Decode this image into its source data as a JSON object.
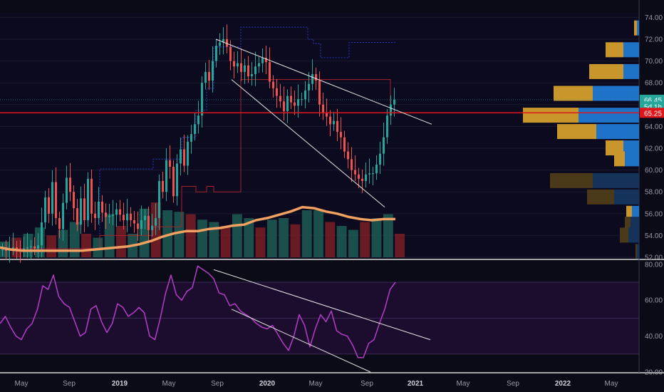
{
  "chart_data": [
    {
      "type": "candlestick",
      "title": "",
      "ylim": [
        52,
        74
      ],
      "y_ticks": [
        "52.00",
        "54.00",
        "56.00",
        "58.00",
        "60.00",
        "62.00",
        "64.00",
        "66.00",
        "68.00",
        "70.00",
        "72.00",
        "74.00"
      ],
      "x_ticks": [
        "May",
        "Sep",
        "2019",
        "May",
        "Sep",
        "2020",
        "May",
        "Sep",
        "2021",
        "May",
        "Sep",
        "2022",
        "May"
      ],
      "price_labels": [
        {
          "text": "66.45",
          "value": 66.45,
          "color": "#26a69a"
        },
        {
          "text": "5d 1h",
          "value": 65.9,
          "color": "#26a69a"
        },
        {
          "text": "65.25",
          "value": 65.25,
          "color": "#e0151b"
        }
      ],
      "horizontal_level": 65.25,
      "candles_close": [
        52.7,
        52.6,
        52.8,
        52.9,
        52.7,
        52.6,
        52.8,
        52.9,
        53.0,
        52.8,
        53.1,
        55.2,
        57.5,
        56.0,
        58.9,
        55.6,
        54.6,
        57.0,
        59.3,
        58.0,
        56.5,
        55.0,
        57.4,
        55.4,
        59.2,
        56.0,
        55.6,
        57.1,
        56.1,
        55.7,
        55.8,
        55.9,
        56.4,
        55.9,
        55.4,
        56.0,
        55.4,
        55.1,
        54.6,
        55.4,
        55.8,
        54.5,
        54.9,
        55.6,
        59.0,
        58.0,
        60.9,
        60.3,
        57.6,
        60.6,
        61.9,
        60.4,
        62.6,
        63.3,
        64.2,
        65.0,
        68.0,
        69.0,
        68.2,
        70.0,
        71.4,
        71.7,
        72.0,
        71.3,
        70.0,
        69.5,
        69.8,
        69.0,
        69.6,
        68.6,
        68.8,
        69.5,
        69.8,
        70.3,
        69.9,
        68.1,
        67.5,
        66.8,
        66.3,
        65.4,
        66.8,
        66.2,
        65.9,
        66.5,
        66.5,
        67.3,
        67.9,
        68.8,
        68.2,
        66.0,
        65.2,
        64.9,
        64.2,
        64.5,
        63.5,
        63.0,
        61.7,
        61.0,
        60.0,
        59.6,
        59.2,
        59.0,
        59.6,
        59.7,
        59.7,
        60.5,
        61.5,
        63.0,
        65.0,
        66.0,
        66.45
      ],
      "ma_values": [
        52.9,
        52.7,
        52.6,
        52.6,
        52.6,
        52.6,
        52.6,
        52.6,
        52.7,
        52.8,
        52.9,
        53.0,
        53.2,
        53.5,
        53.9,
        54.2,
        54.4,
        54.4,
        54.6,
        54.7,
        54.9,
        55.0,
        55.4,
        55.6,
        55.9,
        56.2,
        56.6,
        56.5,
        56.2,
        56.0,
        55.7,
        55.5,
        55.4,
        55.5,
        55.5
      ],
      "volume_values": [
        20,
        25,
        30,
        38,
        28,
        35,
        45,
        30,
        25,
        55,
        40,
        30,
        62,
        70,
        60,
        58,
        55,
        48,
        45,
        40,
        55,
        50,
        38,
        48,
        50,
        42,
        60,
        60,
        45,
        40,
        35,
        45,
        50,
        55,
        30
      ],
      "series": [
        {
          "name": "",
          "kind": "moving-average",
          "color": "#f0a060"
        }
      ]
    },
    {
      "type": "line",
      "title": "",
      "ylim": [
        20,
        80
      ],
      "y_ticks": [
        "20.00",
        "40.00",
        "60.00",
        "80.00"
      ],
      "bands": [
        30,
        70
      ],
      "values": [
        47,
        51,
        45,
        40,
        38,
        44,
        47,
        55,
        68,
        66,
        74,
        62,
        58,
        56,
        48,
        40,
        42,
        55,
        57,
        48,
        42,
        47,
        58,
        56,
        51,
        53,
        56,
        53,
        40,
        38,
        50,
        64,
        74,
        63,
        60,
        65,
        67,
        79,
        77,
        75,
        72,
        64,
        63,
        57,
        58,
        54,
        52,
        50,
        47,
        45,
        44,
        46,
        41,
        36,
        32,
        40,
        52,
        46,
        34,
        44,
        52,
        48,
        54,
        43,
        41,
        40,
        35,
        28,
        28,
        36,
        38,
        47,
        55,
        66,
        70
      ]
    }
  ]
}
